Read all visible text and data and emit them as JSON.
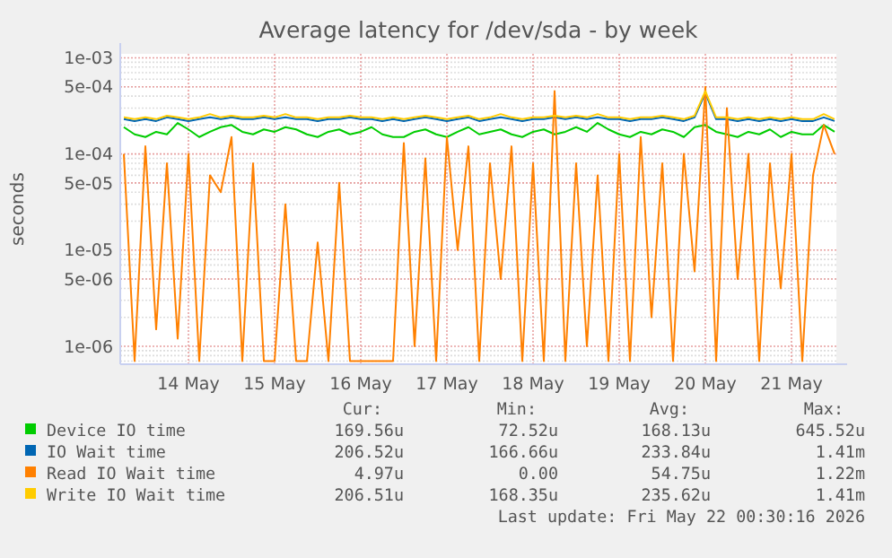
{
  "chart_data": {
    "type": "line",
    "title": "Average latency for /dev/sda - by week",
    "ylabel": "seconds",
    "log": "y",
    "grid": true,
    "legend": "bottom",
    "xlim": [
      "2026-05-13T17:00",
      "2026-05-22T00:30"
    ],
    "xticks": [
      {
        "value": "2026-05-14T12:00",
        "label": "14 May"
      },
      {
        "value": "2026-05-15T12:00",
        "label": "15 May"
      },
      {
        "value": "2026-05-16T12:00",
        "label": "16 May"
      },
      {
        "value": "2026-05-17T12:00",
        "label": "17 May"
      },
      {
        "value": "2026-05-18T12:00",
        "label": "18 May"
      },
      {
        "value": "2026-05-19T12:00",
        "label": "19 May"
      },
      {
        "value": "2026-05-20T12:00",
        "label": "20 May"
      },
      {
        "value": "2026-05-21T12:00",
        "label": "21 May"
      }
    ],
    "ylim": [
      6.5e-07,
      0.0011
    ],
    "yticks": [
      {
        "value": 0.001,
        "label": "1e-03"
      },
      {
        "value": 0.0005,
        "label": "5e-04"
      },
      {
        "value": 0.0001,
        "label": "1e-04"
      },
      {
        "value": 5e-05,
        "label": "5e-05"
      },
      {
        "value": 1e-05,
        "label": "1e-05"
      },
      {
        "value": 5e-06,
        "label": "5e-06"
      },
      {
        "value": 1e-06,
        "label": "1e-06"
      }
    ],
    "x": [
      "2026-05-13T18:00",
      "2026-05-13T21:00",
      "2026-05-14T00:00",
      "2026-05-14T03:00",
      "2026-05-14T06:00",
      "2026-05-14T09:00",
      "2026-05-14T12:00",
      "2026-05-14T15:00",
      "2026-05-14T18:00",
      "2026-05-14T21:00",
      "2026-05-15T00:00",
      "2026-05-15T03:00",
      "2026-05-15T06:00",
      "2026-05-15T09:00",
      "2026-05-15T12:00",
      "2026-05-15T15:00",
      "2026-05-15T18:00",
      "2026-05-15T21:00",
      "2026-05-16T00:00",
      "2026-05-16T03:00",
      "2026-05-16T06:00",
      "2026-05-16T09:00",
      "2026-05-16T12:00",
      "2026-05-16T15:00",
      "2026-05-16T18:00",
      "2026-05-16T21:00",
      "2026-05-17T00:00",
      "2026-05-17T03:00",
      "2026-05-17T06:00",
      "2026-05-17T09:00",
      "2026-05-17T12:00",
      "2026-05-17T15:00",
      "2026-05-17T18:00",
      "2026-05-17T21:00",
      "2026-05-18T00:00",
      "2026-05-18T03:00",
      "2026-05-18T06:00",
      "2026-05-18T09:00",
      "2026-05-18T12:00",
      "2026-05-18T15:00",
      "2026-05-18T18:00",
      "2026-05-18T21:00",
      "2026-05-19T00:00",
      "2026-05-19T03:00",
      "2026-05-19T06:00",
      "2026-05-19T09:00",
      "2026-05-19T12:00",
      "2026-05-19T15:00",
      "2026-05-19T18:00",
      "2026-05-19T21:00",
      "2026-05-20T00:00",
      "2026-05-20T03:00",
      "2026-05-20T06:00",
      "2026-05-20T09:00",
      "2026-05-20T12:00",
      "2026-05-20T15:00",
      "2026-05-20T18:00",
      "2026-05-20T21:00",
      "2026-05-21T00:00",
      "2026-05-21T03:00",
      "2026-05-21T06:00",
      "2026-05-21T09:00",
      "2026-05-21T12:00",
      "2026-05-21T15:00",
      "2026-05-21T18:00",
      "2026-05-21T21:00",
      "2026-05-22T00:00"
    ],
    "series": [
      {
        "name": "Device IO time",
        "color": "#00cc00",
        "values": [
          0.00019,
          0.00016,
          0.00015,
          0.00017,
          0.00016,
          0.00021,
          0.00018,
          0.00015,
          0.00017,
          0.00019,
          0.0002,
          0.00017,
          0.00016,
          0.00018,
          0.00017,
          0.00019,
          0.00018,
          0.00016,
          0.00015,
          0.00017,
          0.00018,
          0.00016,
          0.00017,
          0.00019,
          0.00016,
          0.00015,
          0.00015,
          0.00017,
          0.00018,
          0.00016,
          0.00015,
          0.00017,
          0.00019,
          0.00016,
          0.00017,
          0.00018,
          0.00016,
          0.00015,
          0.00017,
          0.00018,
          0.00016,
          0.00017,
          0.00019,
          0.00017,
          0.00021,
          0.00018,
          0.00016,
          0.00015,
          0.00017,
          0.00016,
          0.00018,
          0.00017,
          0.00015,
          0.00019,
          0.0002,
          0.00017,
          0.00016,
          0.00015,
          0.00017,
          0.00016,
          0.00018,
          0.00015,
          0.00017,
          0.00016,
          0.00016,
          0.0002,
          0.00017
        ]
      },
      {
        "name": "IO Wait time",
        "color": "#0066b3",
        "values": [
          0.00023,
          0.00022,
          0.00023,
          0.00022,
          0.00024,
          0.00023,
          0.00022,
          0.00023,
          0.00024,
          0.00023,
          0.00024,
          0.00023,
          0.00023,
          0.00024,
          0.00023,
          0.00024,
          0.00023,
          0.00023,
          0.00022,
          0.00023,
          0.00023,
          0.00024,
          0.00023,
          0.00023,
          0.00022,
          0.00023,
          0.00022,
          0.00023,
          0.00024,
          0.00023,
          0.00022,
          0.00023,
          0.00024,
          0.00022,
          0.00023,
          0.00024,
          0.00023,
          0.00022,
          0.00023,
          0.00023,
          0.00024,
          0.00023,
          0.00024,
          0.00023,
          0.00024,
          0.00023,
          0.00023,
          0.00022,
          0.00023,
          0.00023,
          0.00024,
          0.00023,
          0.00022,
          0.00024,
          0.00043,
          0.00023,
          0.00023,
          0.00022,
          0.00023,
          0.00022,
          0.00023,
          0.00022,
          0.00023,
          0.00022,
          0.00022,
          0.00024,
          0.00022
        ]
      },
      {
        "name": "Read IO Wait time",
        "color": "#ff8000",
        "values": [
          0.0001,
          7e-07,
          0.00012,
          1.5e-06,
          8e-05,
          1.2e-06,
          0.0001,
          7e-07,
          6e-05,
          4e-05,
          0.00015,
          7e-07,
          8e-05,
          7e-07,
          7e-07,
          3e-05,
          7e-07,
          7e-07,
          1.2e-05,
          7e-07,
          5e-05,
          7e-07,
          7e-07,
          7e-07,
          7e-07,
          7e-07,
          0.00013,
          1e-06,
          9e-05,
          7e-07,
          0.00015,
          1e-05,
          0.00012,
          7e-07,
          8e-05,
          5e-06,
          0.00012,
          7e-07,
          8e-05,
          7e-07,
          0.00045,
          7e-07,
          8e-05,
          1e-06,
          6e-05,
          7e-07,
          0.0001,
          7e-07,
          0.00015,
          2e-06,
          8e-05,
          7e-07,
          0.0001,
          6e-06,
          0.0005,
          7e-07,
          0.0003,
          5e-06,
          0.0001,
          7e-07,
          8e-05,
          4e-06,
          0.0001,
          7e-07,
          6e-05,
          0.0002,
          0.0001
        ]
      },
      {
        "name": "Write IO Wait time",
        "color": "#ffcc00",
        "values": [
          0.00024,
          0.00023,
          0.00024,
          0.00023,
          0.00025,
          0.00024,
          0.00023,
          0.00024,
          0.00026,
          0.00024,
          0.00025,
          0.00024,
          0.00024,
          0.00025,
          0.00024,
          0.00026,
          0.00024,
          0.00024,
          0.00023,
          0.00024,
          0.00024,
          0.00025,
          0.00024,
          0.00024,
          0.00023,
          0.00024,
          0.00023,
          0.00024,
          0.00025,
          0.00024,
          0.00023,
          0.00024,
          0.00025,
          0.00023,
          0.00024,
          0.00026,
          0.00024,
          0.00023,
          0.00024,
          0.00024,
          0.00025,
          0.00024,
          0.00025,
          0.00024,
          0.00026,
          0.00024,
          0.00024,
          0.00023,
          0.00024,
          0.00024,
          0.00025,
          0.00024,
          0.00023,
          0.00025,
          0.00045,
          0.00024,
          0.00024,
          0.00023,
          0.00024,
          0.00023,
          0.00024,
          0.00023,
          0.00024,
          0.00023,
          0.00023,
          0.00026,
          0.00023
        ]
      }
    ],
    "annotations": [
      "Cur:",
      "Min:",
      "Avg:",
      "Max:",
      "169.56u",
      "72.52u",
      "168.13u",
      "645.52u",
      "206.52u",
      "166.66u",
      "233.84u",
      "1.41m",
      "4.97u",
      "0.00",
      "54.75u",
      "1.22m",
      "206.51u",
      "168.35u",
      "235.62u",
      "1.41m",
      "Last update: Fri May 22 00:30:16 2026"
    ]
  }
}
